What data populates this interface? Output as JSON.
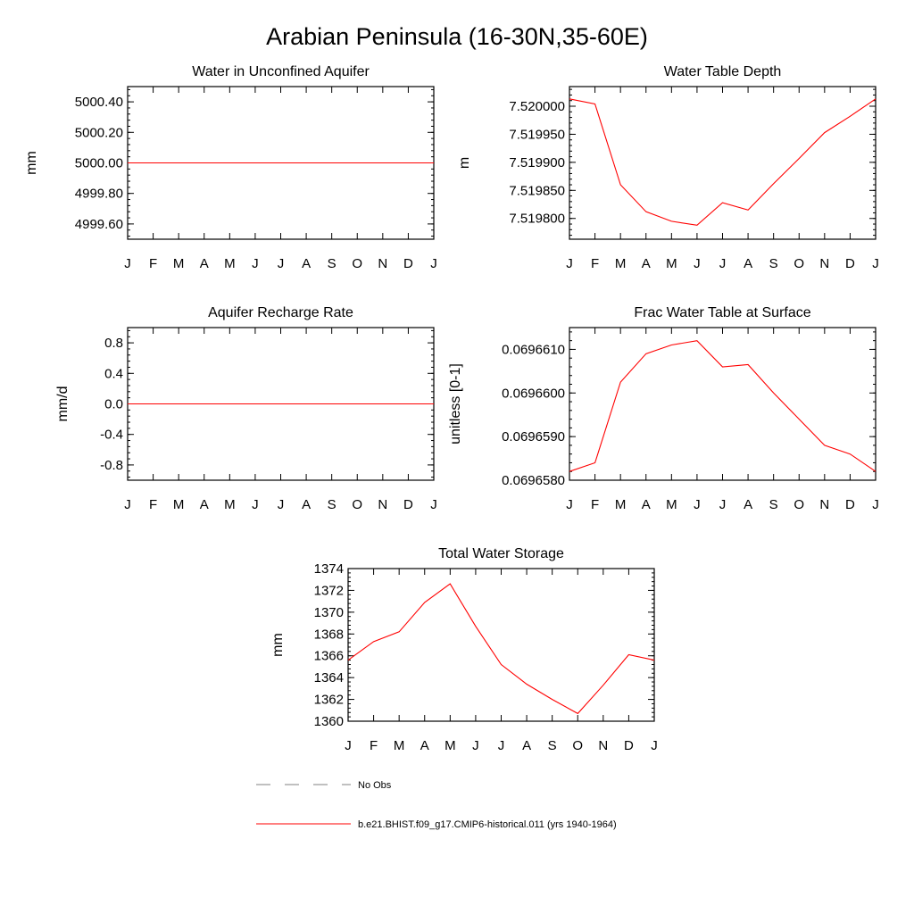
{
  "figure": {
    "title": "Arabian Peninsula (16-30N,35-60E)"
  },
  "month_labels": [
    "J",
    "F",
    "M",
    "A",
    "M",
    "J",
    "J",
    "A",
    "S",
    "O",
    "N",
    "D",
    "J"
  ],
  "chart_data": [
    {
      "type": "line",
      "title": "Water in Unconfined Aquifer",
      "ylabel": "mm",
      "xlabel": "",
      "ylim": [
        4999.5,
        5000.5
      ],
      "yticks": [
        4999.6,
        4999.8,
        5000.0,
        5000.2,
        5000.4
      ],
      "ytick_labels": [
        "4999.60",
        "4999.80",
        "5000.00",
        "5000.20",
        "5000.40"
      ],
      "categories": [
        "J",
        "F",
        "M",
        "A",
        "M",
        "J",
        "J",
        "A",
        "S",
        "O",
        "N",
        "D",
        "J"
      ],
      "series": [
        {
          "color": "#ff0000",
          "values": [
            5000,
            5000,
            5000,
            5000,
            5000,
            5000,
            5000,
            5000,
            5000,
            5000,
            5000,
            5000,
            5000
          ]
        }
      ]
    },
    {
      "type": "line",
      "title": "Water Table Depth",
      "ylabel": "m",
      "xlabel": "",
      "ylim": [
        7.519763,
        7.520035
      ],
      "yticks": [
        7.5198,
        7.51985,
        7.5199,
        7.51995,
        7.52
      ],
      "ytick_labels": [
        "7.519800",
        "7.519850",
        "7.519900",
        "7.519950",
        "7.520000"
      ],
      "categories": [
        "J",
        "F",
        "M",
        "A",
        "M",
        "J",
        "J",
        "A",
        "S",
        "O",
        "N",
        "D",
        "J"
      ],
      "series": [
        {
          "color": "#ff0000",
          "values": [
            7.520013,
            7.520004,
            7.51986,
            7.519812,
            7.519795,
            7.519788,
            7.519828,
            7.519815,
            7.519862,
            7.519907,
            7.519953,
            7.519982,
            7.520013
          ]
        }
      ]
    },
    {
      "type": "line",
      "title": "Aquifer Recharge Rate",
      "ylabel": "mm/d",
      "xlabel": "",
      "ylim": [
        -1.0,
        1.0
      ],
      "yticks": [
        -0.8,
        -0.4,
        0.0,
        0.4,
        0.8
      ],
      "ytick_labels": [
        "-0.8",
        "-0.4",
        "0.0",
        "0.4",
        "0.8"
      ],
      "categories": [
        "J",
        "F",
        "M",
        "A",
        "M",
        "J",
        "J",
        "A",
        "S",
        "O",
        "N",
        "D",
        "J"
      ],
      "series": [
        {
          "color": "#ff0000",
          "values": [
            0,
            0,
            0,
            0,
            0,
            0,
            0,
            0,
            0,
            0,
            0,
            0,
            0
          ]
        }
      ]
    },
    {
      "type": "line",
      "title": "Frac Water Table at Surface",
      "ylabel": "unitless [0-1]",
      "xlabel": "",
      "ylim": [
        0.069658,
        0.0696615
      ],
      "yticks": [
        0.069658,
        0.069659,
        0.06966,
        0.069661
      ],
      "ytick_labels": [
        "0.0696580",
        "0.0696590",
        "0.0696600",
        "0.0696610"
      ],
      "categories": [
        "J",
        "F",
        "M",
        "A",
        "M",
        "J",
        "J",
        "A",
        "S",
        "O",
        "N",
        "D",
        "J"
      ],
      "series": [
        {
          "color": "#ff0000",
          "values": [
            0.0696582,
            0.0696584,
            0.06966025,
            0.0696609,
            0.0696611,
            0.0696612,
            0.0696606,
            0.06966065,
            0.06966,
            0.0696594,
            0.0696588,
            0.0696586,
            0.0696582
          ]
        }
      ]
    },
    {
      "type": "line",
      "title": "Total Water Storage",
      "ylabel": "mm",
      "xlabel": "",
      "ylim": [
        1360,
        1374
      ],
      "yticks": [
        1360,
        1362,
        1364,
        1366,
        1368,
        1370,
        1372,
        1374
      ],
      "ytick_labels": [
        "1360",
        "1362",
        "1364",
        "1366",
        "1368",
        "1370",
        "1372",
        "1374"
      ],
      "categories": [
        "J",
        "F",
        "M",
        "A",
        "M",
        "J",
        "J",
        "A",
        "S",
        "O",
        "N",
        "D",
        "J"
      ],
      "series": [
        {
          "color": "#ff0000",
          "values": [
            1365.6,
            1367.3,
            1368.2,
            1370.9,
            1372.6,
            1368.7,
            1365.2,
            1363.4,
            1362.0,
            1360.7,
            1363.3,
            1366.1,
            1365.6
          ]
        }
      ]
    }
  ],
  "legend": {
    "entries": [
      {
        "label": "No Obs",
        "style": "dashed",
        "color": "#808080"
      },
      {
        "label": "b.e21.BHIST.f09_g17.CMIP6-historical.011 (yrs 1940-1964)",
        "style": "solid",
        "color": "#ff0000"
      }
    ]
  }
}
